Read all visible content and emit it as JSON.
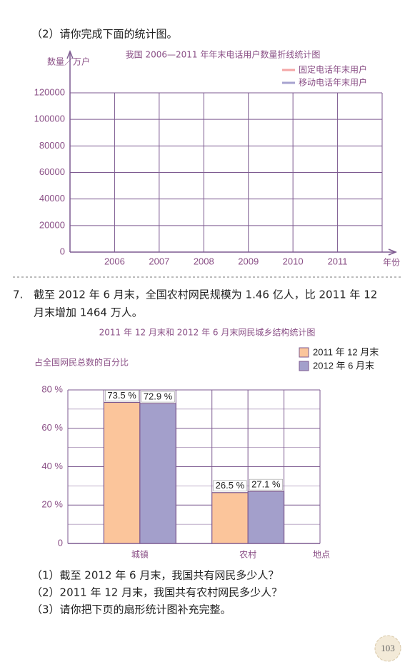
{
  "section_instruction": "（2）请你完成下面的统计图。",
  "problem": {
    "number": "7.",
    "lines": [
      "截至 2012 年 6 月末，全国农村网民规模为 1.46 亿人，比 2011 年 12",
      "月末增加 1464 万人。"
    ]
  },
  "questions": [
    "（1）截至 2012 年 6 月末，我国共有网民多少人？",
    "（2）2011 年 12 月末，我国共有农村网民多少人？",
    "（3）请你把下页的扇形统计图补充完整。"
  ],
  "page_number": "103",
  "chart_data": [
    {
      "type": "line",
      "title": "我国 2006—2011 年年末电话用户数量折线统计图",
      "y_label": "数量／万户",
      "x_label": "年份",
      "categories": [
        "2006",
        "2007",
        "2008",
        "2009",
        "2010",
        "2011"
      ],
      "series": [
        {
          "name": "固定电话年末用户",
          "color": "#f4a6a6",
          "values": [
            null,
            null,
            null,
            null,
            null,
            null
          ]
        },
        {
          "name": "移动电话年末用户",
          "color": "#a7a3cf",
          "values": [
            null,
            null,
            null,
            null,
            null,
            null
          ]
        }
      ],
      "ylim": [
        0,
        120000
      ],
      "yticks": [
        0,
        20000,
        40000,
        60000,
        80000,
        100000,
        120000
      ],
      "grid": true,
      "legend": "top-right"
    },
    {
      "type": "bar",
      "title": "2011 年 12 月末和 2012 年 6 月末网民城乡结构统计图",
      "y_label": "占全国网民总数的百分比",
      "x_label": "地点",
      "categories": [
        "城镇",
        "农村"
      ],
      "series": [
        {
          "name": "2011 年 12 月末",
          "color": "#fbc59b",
          "values": [
            73.5,
            26.5
          ],
          "value_labels": [
            "73.5 %",
            "26.5 %"
          ]
        },
        {
          "name": "2012 年 6 月末",
          "color": "#a39fcb",
          "values": [
            72.9,
            27.1
          ],
          "value_labels": [
            "72.9 %",
            "27.1 %"
          ]
        }
      ],
      "ylim": [
        0,
        80
      ],
      "yticks": [
        0,
        {
          "value": 20,
          "label": "20 %"
        },
        {
          "value": 40,
          "label": "40 %"
        },
        {
          "value": 60,
          "label": "60 %"
        },
        {
          "value": 80,
          "label": "80 %"
        }
      ],
      "grid": true,
      "legend": "top-right"
    }
  ]
}
